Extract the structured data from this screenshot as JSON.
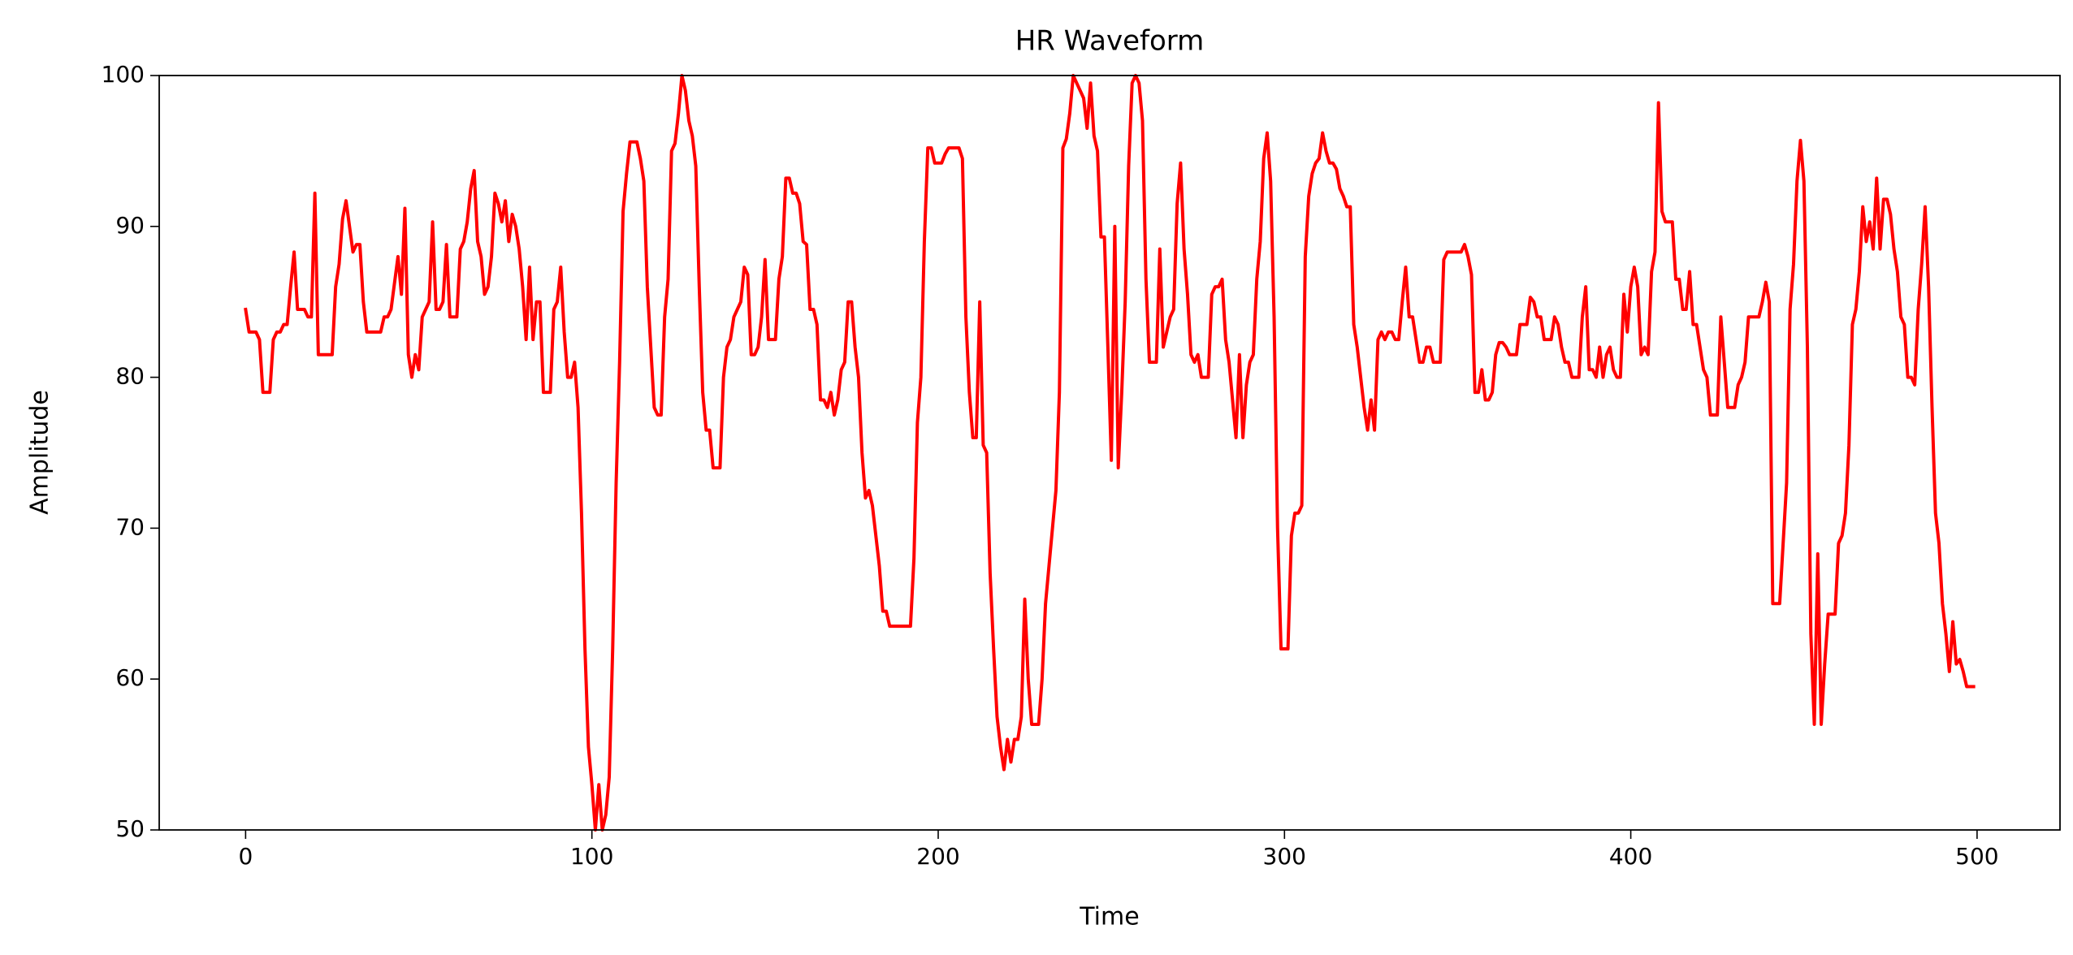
{
  "chart_data": {
    "type": "line",
    "title": "HR Waveform",
    "x_label": "Time",
    "y_label": "Amplitude",
    "color": "#ff0000",
    "grid": false,
    "xlim": [
      -24.95,
      523.95
    ],
    "ylim": [
      50,
      100
    ],
    "xticks": [
      0,
      100,
      200,
      300,
      400,
      500
    ],
    "yticks": [
      50,
      60,
      70,
      80,
      90,
      100
    ],
    "x": [
      0,
      1,
      3,
      4,
      5,
      7,
      8,
      9,
      10,
      11,
      12,
      13,
      14,
      15,
      17,
      18,
      19,
      20,
      21,
      25,
      26,
      27,
      28,
      29,
      30,
      31,
      32,
      33,
      34,
      35,
      39,
      40,
      41,
      42,
      44,
      45,
      46,
      47,
      48,
      49,
      50,
      51,
      52,
      53,
      54,
      55,
      56,
      57,
      58,
      59,
      61,
      62,
      63,
      64,
      65,
      66,
      67,
      68,
      69,
      70,
      71,
      72,
      73,
      74,
      75,
      76,
      77,
      78,
      79,
      80,
      81,
      82,
      83,
      84,
      85,
      86,
      88,
      89,
      90,
      91,
      92,
      93,
      94,
      95,
      96,
      97,
      98,
      99,
      100,
      101,
      102,
      103,
      104,
      105,
      106,
      107,
      108,
      109,
      110,
      111,
      113,
      114,
      115,
      116,
      117,
      118,
      119,
      120,
      121,
      122,
      123,
      124,
      125,
      126,
      127,
      128,
      129,
      130,
      131,
      132,
      133,
      134,
      135,
      137,
      138,
      139,
      140,
      141,
      142,
      143,
      144,
      145,
      146,
      147,
      148,
      149,
      150,
      151,
      153,
      154,
      155,
      156,
      157,
      158,
      159,
      160,
      161,
      162,
      163,
      164,
      165,
      166,
      167,
      168,
      169,
      170,
      171,
      172,
      173,
      174,
      175,
      176,
      177,
      178,
      179,
      180,
      181,
      182,
      183,
      184,
      185,
      186,
      192,
      193,
      194,
      195,
      196,
      197,
      198,
      199,
      201,
      202,
      203,
      206,
      207,
      208,
      209,
      210,
      211,
      212,
      213,
      214,
      215,
      216,
      217,
      218,
      219,
      220,
      221,
      222,
      223,
      224,
      225,
      226,
      227,
      229,
      230,
      231,
      232,
      233,
      234,
      235,
      236,
      237,
      238,
      239,
      240,
      241,
      242,
      243,
      244,
      245,
      246,
      247,
      248,
      249,
      250,
      251,
      252,
      253,
      254,
      255,
      256,
      257,
      258,
      259,
      260,
      261,
      263,
      264,
      265,
      266,
      267,
      268,
      269,
      270,
      271,
      272,
      273,
      274,
      275,
      276,
      278,
      279,
      280,
      281,
      282,
      283,
      284,
      285,
      286,
      287,
      288,
      289,
      290,
      291,
      292,
      293,
      294,
      295,
      296,
      297,
      298,
      299,
      301,
      302,
      303,
      304,
      305,
      306,
      307,
      308,
      309,
      310,
      311,
      312,
      313,
      314,
      315,
      316,
      317,
      318,
      319,
      320,
      321,
      322,
      323,
      324,
      325,
      326,
      327,
      328,
      329,
      330,
      331,
      332,
      333,
      334,
      335,
      336,
      337,
      338,
      339,
      340,
      341,
      342,
      343,
      345,
      346,
      347,
      351,
      352,
      353,
      354,
      355,
      356,
      357,
      358,
      359,
      360,
      361,
      362,
      363,
      364,
      365,
      367,
      368,
      370,
      371,
      372,
      373,
      374,
      375,
      377,
      378,
      379,
      380,
      381,
      382,
      383,
      385,
      386,
      387,
      388,
      389,
      390,
      391,
      392,
      393,
      394,
      395,
      396,
      397,
      398,
      399,
      400,
      401,
      402,
      403,
      404,
      405,
      406,
      407,
      408,
      409,
      410,
      412,
      413,
      414,
      415,
      416,
      417,
      418,
      419,
      420,
      421,
      422,
      423,
      425,
      426,
      427,
      428,
      430,
      431,
      432,
      433,
      434,
      437,
      438,
      439,
      440,
      441,
      443,
      444,
      445,
      446,
      447,
      448,
      449,
      450,
      451,
      452,
      453,
      454,
      455,
      456,
      457,
      459,
      460,
      461,
      462,
      463,
      464,
      465,
      466,
      467,
      468,
      469,
      470,
      471,
      472,
      473,
      474,
      475,
      476,
      477,
      478,
      479,
      480,
      481,
      482,
      483,
      484,
      485,
      486,
      487,
      488,
      489,
      490,
      491,
      492,
      493,
      494,
      495,
      496,
      497,
      499
    ],
    "values": [
      84.5,
      83,
      83,
      82.5,
      79,
      79,
      82.5,
      83,
      83,
      83.5,
      83.5,
      86,
      88.3,
      84.5,
      84.5,
      84,
      84,
      92.2,
      81.5,
      81.5,
      86,
      87.5,
      90.5,
      91.7,
      90,
      88.3,
      88.8,
      88.8,
      85,
      83,
      83,
      84,
      84,
      84.5,
      88,
      85.5,
      91.2,
      81.5,
      80,
      81.5,
      80.5,
      84,
      84.5,
      85,
      90.3,
      84.5,
      84.5,
      85,
      88.8,
      84,
      84,
      88.5,
      89,
      90.3,
      92.5,
      93.7,
      89,
      88,
      85.5,
      86,
      88,
      92.2,
      91.5,
      90.3,
      91.7,
      89,
      90.8,
      90,
      88.5,
      86,
      82.5,
      87.3,
      82.5,
      85,
      85,
      79,
      79,
      84.5,
      85,
      87.3,
      83,
      80,
      80,
      81,
      78,
      71,
      62,
      55.5,
      53,
      50,
      53,
      50,
      51,
      53.5,
      62,
      73,
      81,
      91,
      93.5,
      95.6,
      95.6,
      94.5,
      93,
      86,
      82,
      78,
      77.5,
      77.5,
      84,
      86.5,
      95,
      95.5,
      97.5,
      100,
      99,
      97,
      96,
      94,
      86,
      79,
      76.5,
      76.5,
      74,
      74,
      80,
      82,
      82.5,
      84,
      84.5,
      85,
      87.3,
      86.8,
      81.5,
      81.5,
      82,
      84,
      87.8,
      82.5,
      82.5,
      86.5,
      88,
      93.2,
      93.2,
      92.2,
      92.2,
      91.5,
      89,
      88.8,
      84.5,
      84.5,
      83.5,
      78.5,
      78.5,
      78,
      79,
      77.5,
      78.5,
      80.5,
      81,
      85,
      85,
      82,
      80,
      75,
      72,
      72.5,
      71.5,
      69.5,
      67.5,
      64.5,
      64.5,
      63.5,
      63.5,
      68,
      77,
      80,
      89,
      95.2,
      95.2,
      94.2,
      94.2,
      94.8,
      95.2,
      95.2,
      94.5,
      84,
      79,
      76,
      76,
      85,
      75.5,
      75,
      67,
      62,
      57.5,
      55.5,
      54,
      56,
      54.5,
      56,
      56,
      57.5,
      65.3,
      60,
      57,
      57,
      60,
      65,
      67.5,
      70,
      72.5,
      79,
      95.2,
      95.8,
      97.5,
      100,
      99.5,
      99,
      98.5,
      96.5,
      99.5,
      96,
      95,
      89.3,
      89.3,
      82,
      74.5,
      90,
      74,
      79,
      85,
      94,
      99.5,
      100,
      99.5,
      97,
      86.5,
      81,
      81,
      88.5,
      82,
      83,
      84,
      84.5,
      91.5,
      94.2,
      88.5,
      85.5,
      81.5,
      81,
      81.5,
      80,
      80,
      85.5,
      86,
      86,
      86.5,
      82.5,
      81,
      78.5,
      76,
      81.5,
      76,
      79.5,
      81,
      81.5,
      86.5,
      89,
      94.5,
      96.2,
      93,
      84,
      70,
      62,
      62,
      69.5,
      71,
      71,
      71.5,
      88,
      92,
      93.5,
      94.2,
      94.5,
      96.2,
      95,
      94.2,
      94.2,
      93.8,
      92.5,
      92,
      91.3,
      91.3,
      83.5,
      82,
      80,
      78,
      76.5,
      78.5,
      76.5,
      82.5,
      83,
      82.5,
      83,
      83,
      82.5,
      82.5,
      85,
      87.3,
      84,
      84,
      82.5,
      81,
      81,
      82,
      82,
      81,
      81,
      87.8,
      88.3,
      88.3,
      88.8,
      88,
      86.8,
      79,
      79,
      80.5,
      78.5,
      78.5,
      79,
      81.5,
      82.3,
      82.3,
      82,
      81.5,
      81.5,
      83.5,
      83.5,
      85.3,
      85,
      84,
      84,
      82.5,
      82.5,
      84,
      83.5,
      82,
      81,
      81,
      80,
      80,
      84,
      86,
      80.5,
      80.5,
      80,
      82,
      80,
      81.5,
      82,
      80.5,
      80,
      80,
      85.5,
      83,
      86,
      87.3,
      86,
      81.5,
      82,
      81.5,
      87,
      88.3,
      98.2,
      91,
      90.3,
      90.3,
      86.5,
      86.5,
      84.5,
      84.5,
      87,
      83.5,
      83.5,
      82,
      80.5,
      80,
      77.5,
      77.5,
      84,
      81,
      78,
      78,
      79.5,
      80,
      81,
      84,
      84,
      85,
      86.3,
      85,
      65,
      65,
      69,
      73,
      84.5,
      87.5,
      93,
      95.7,
      93,
      82,
      63,
      57,
      68.3,
      57,
      61,
      64.3,
      64.3,
      69,
      69.5,
      71,
      75.5,
      83.5,
      84.5,
      87,
      91.3,
      89,
      90.3,
      88.5,
      93.2,
      88.5,
      91.8,
      91.8,
      90.8,
      88.5,
      87,
      84,
      83.5,
      80,
      80,
      79.5,
      84.5,
      87.5,
      91.3,
      86,
      78,
      71,
      69,
      65,
      63,
      60.5,
      63.8,
      61,
      61.3,
      60.5,
      59.5,
      59.5
    ]
  }
}
